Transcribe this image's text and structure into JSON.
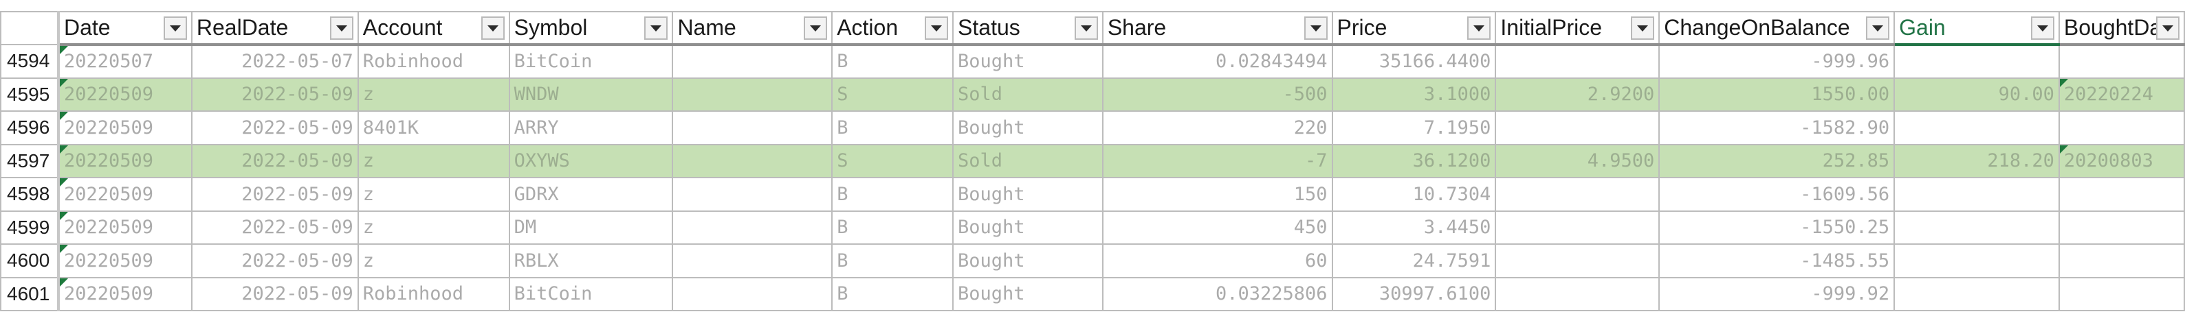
{
  "columns": [
    {
      "key": "date",
      "label": "Date",
      "sorted": true
    },
    {
      "key": "realdate",
      "label": "RealDate"
    },
    {
      "key": "account",
      "label": "Account"
    },
    {
      "key": "symbol",
      "label": "Symbol"
    },
    {
      "key": "name",
      "label": "Name"
    },
    {
      "key": "action",
      "label": "Action"
    },
    {
      "key": "status",
      "label": "Status"
    },
    {
      "key": "share",
      "label": "Share"
    },
    {
      "key": "price",
      "label": "Price"
    },
    {
      "key": "initialprice",
      "label": "InitialPrice"
    },
    {
      "key": "changeonbalance",
      "label": "ChangeOnBalance"
    },
    {
      "key": "gain",
      "label": "Gain",
      "highlight": true
    },
    {
      "key": "boughtdate",
      "label": "BoughtDate"
    }
  ],
  "icons": {
    "filter": "filter-dropdown-icon",
    "sort": "sort-ascending-icon",
    "error_indicator": "green-triangle-indicator"
  },
  "colors": {
    "sold_row_fill": "#c6e0b4",
    "gain_header_text": "#217346",
    "error_triangle": "#1e7a3d"
  },
  "rows": [
    {
      "rownum": "4594",
      "date": "20220507",
      "realdate": "2022-05-07",
      "account": "Robinhood",
      "symbol": "BitCoin",
      "name": "",
      "action": "B",
      "status": "Bought",
      "share": "0.02843494",
      "price": "35166.4400",
      "initialprice": "",
      "changeonbalance": "-999.96",
      "gain": "",
      "boughtdate": "",
      "sold": false
    },
    {
      "rownum": "4595",
      "date": "20220509",
      "realdate": "2022-05-09",
      "account": "z",
      "symbol": "WNDW",
      "name": "",
      "action": "S",
      "status": "Sold",
      "share": "-500",
      "price": "3.1000",
      "initialprice": "2.9200",
      "changeonbalance": "1550.00",
      "gain": "90.00",
      "boughtdate": "20220224",
      "sold": true
    },
    {
      "rownum": "4596",
      "date": "20220509",
      "realdate": "2022-05-09",
      "account": "8401K",
      "symbol": "ARRY",
      "name": "",
      "action": "B",
      "status": "Bought",
      "share": "220",
      "price": "7.1950",
      "initialprice": "",
      "changeonbalance": "-1582.90",
      "gain": "",
      "boughtdate": "",
      "sold": false
    },
    {
      "rownum": "4597",
      "date": "20220509",
      "realdate": "2022-05-09",
      "account": "z",
      "symbol": "OXYWS",
      "name": "",
      "action": "S",
      "status": "Sold",
      "share": "-7",
      "price": "36.1200",
      "initialprice": "4.9500",
      "changeonbalance": "252.85",
      "gain": "218.20",
      "boughtdate": "20200803",
      "sold": true
    },
    {
      "rownum": "4598",
      "date": "20220509",
      "realdate": "2022-05-09",
      "account": "z",
      "symbol": "GDRX",
      "name": "",
      "action": "B",
      "status": "Bought",
      "share": "150",
      "price": "10.7304",
      "initialprice": "",
      "changeonbalance": "-1609.56",
      "gain": "",
      "boughtdate": "",
      "sold": false
    },
    {
      "rownum": "4599",
      "date": "20220509",
      "realdate": "2022-05-09",
      "account": "z",
      "symbol": "DM",
      "name": "",
      "action": "B",
      "status": "Bought",
      "share": "450",
      "price": "3.4450",
      "initialprice": "",
      "changeonbalance": "-1550.25",
      "gain": "",
      "boughtdate": "",
      "sold": false
    },
    {
      "rownum": "4600",
      "date": "20220509",
      "realdate": "2022-05-09",
      "account": "z",
      "symbol": "RBLX",
      "name": "",
      "action": "B",
      "status": "Bought",
      "share": "60",
      "price": "24.7591",
      "initialprice": "",
      "changeonbalance": "-1485.55",
      "gain": "",
      "boughtdate": "",
      "sold": false
    },
    {
      "rownum": "4601",
      "date": "20220509",
      "realdate": "2022-05-09",
      "account": "Robinhood",
      "symbol": "BitCoin",
      "name": "",
      "action": "B",
      "status": "Bought",
      "share": "0.03225806",
      "price": "30997.6100",
      "initialprice": "",
      "changeonbalance": "-999.92",
      "gain": "",
      "boughtdate": "",
      "sold": false
    }
  ]
}
